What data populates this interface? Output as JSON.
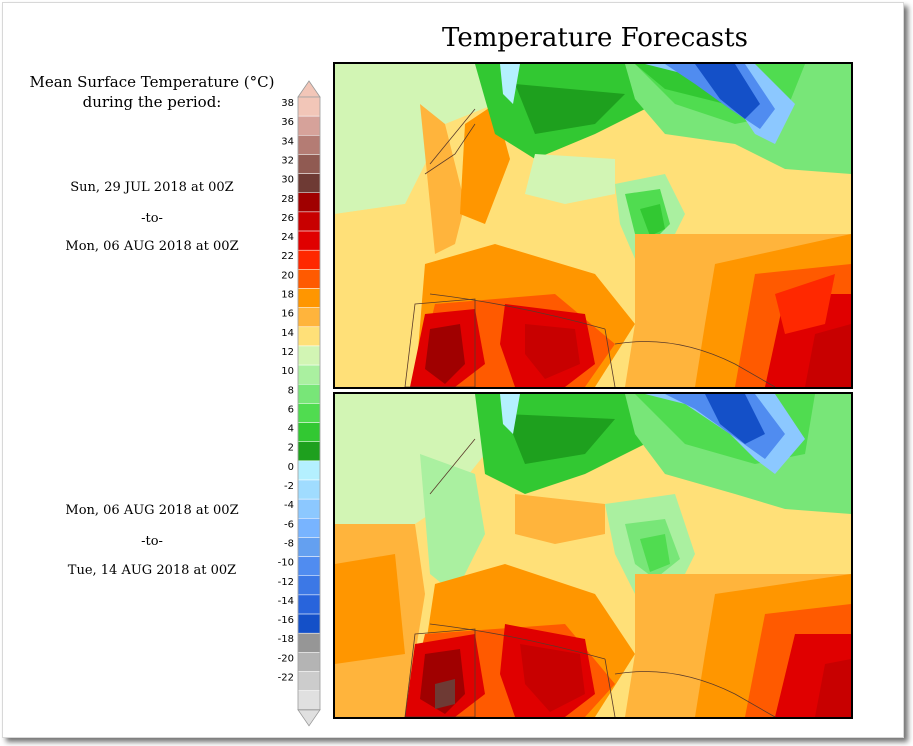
{
  "title": "Temperature Forecasts",
  "legend_title_line1": "Mean Surface Temperature (°C)",
  "legend_title_line2": "during the period:",
  "periods": [
    {
      "start": "Sun, 29 JUL 2018 at 00Z",
      "sep": "-to-",
      "end": "Mon, 06 AUG 2018 at 00Z"
    },
    {
      "start": "Mon, 06 AUG 2018 at 00Z",
      "sep": "-to-",
      "end": "Tue, 14 AUG 2018 at 00Z"
    }
  ],
  "colorbar": {
    "ticks": [
      "38",
      "36",
      "34",
      "32",
      "30",
      "28",
      "26",
      "24",
      "22",
      "20",
      "18",
      "16",
      "14",
      "12",
      "10",
      "8",
      "6",
      "4",
      "2",
      "0",
      "-2",
      "-4",
      "-6",
      "-8",
      "-10",
      "-12",
      "-14",
      "-16",
      "-18",
      "-20",
      "-22"
    ],
    "colors": [
      "#f2c6b8",
      "#d6a29a",
      "#b47c74",
      "#905a52",
      "#6e3a34",
      "#a00000",
      "#c80000",
      "#e00000",
      "#ff2800",
      "#ff5a00",
      "#ff9600",
      "#ffb43c",
      "#ffe078",
      "#d2f5b4",
      "#aaf0a0",
      "#78e678",
      "#50dc50",
      "#32c832",
      "#1ea01e",
      "#b4f0ff",
      "#a0dcff",
      "#8cc8ff",
      "#78b4ff",
      "#64a0f0",
      "#508cf0",
      "#3c78e6",
      "#2864dc",
      "#1450c8",
      "#969696",
      "#b4b4b4",
      "#cccccc",
      "#e0e0e0"
    ]
  }
}
